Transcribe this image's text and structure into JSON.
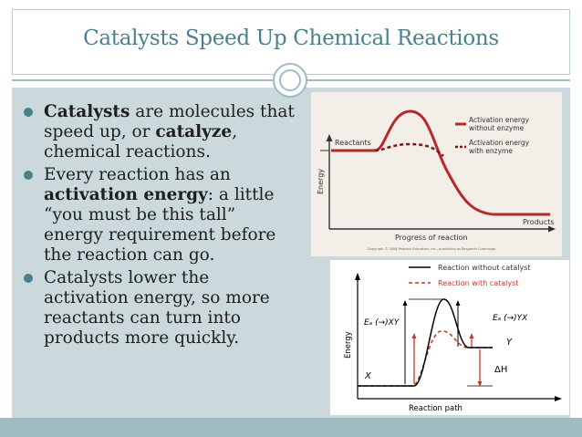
{
  "title": "Catalysts Speed Up Chemical Reactions",
  "bullets": {
    "b1": {
      "strong": "Catalysts",
      "t1": " are molecules that speed up, or ",
      "strong2": "catalyze",
      "t2": ", chemical reactions."
    },
    "b2": {
      "t1": "Every reaction has an ",
      "strong": "activation energy",
      "t2": ": a little “you must be this tall” energy requirement before the reaction can go."
    },
    "b3": {
      "t1": "Catalysts lower the activation energy, so more reactants can turn into products more quickly."
    }
  },
  "figure1": {
    "y_label": "Energy",
    "x_label": "Progress of reaction",
    "reactants": "Reactants",
    "products": "Products",
    "legend_without_1": "Activation energy",
    "legend_without_2": "without enzyme",
    "legend_with_1": "Activation energy",
    "legend_with_2": "with enzyme",
    "copyright": "Copyright © 2006 Pearson Education, Inc., publishing as Benjamin Cummings.",
    "colors": {
      "uncatalyzed": "#b5292a",
      "catalyzed": "#8a1a1a",
      "background": "#f3eee8"
    }
  },
  "figure2": {
    "legend_without": "Reaction without catalyst",
    "legend_with": "Reaction with catalyst",
    "y_label": "Energy",
    "x_label": "Reaction path",
    "ea_forward": "Eₐ (→)XY",
    "ea_reverse": "Eₐ (→)YX",
    "label_x": "X",
    "label_y": "Y",
    "delta_h": "ΔH",
    "colors": {
      "uncatalyzed": "#000000",
      "catalyzed": "#c0392b"
    }
  }
}
